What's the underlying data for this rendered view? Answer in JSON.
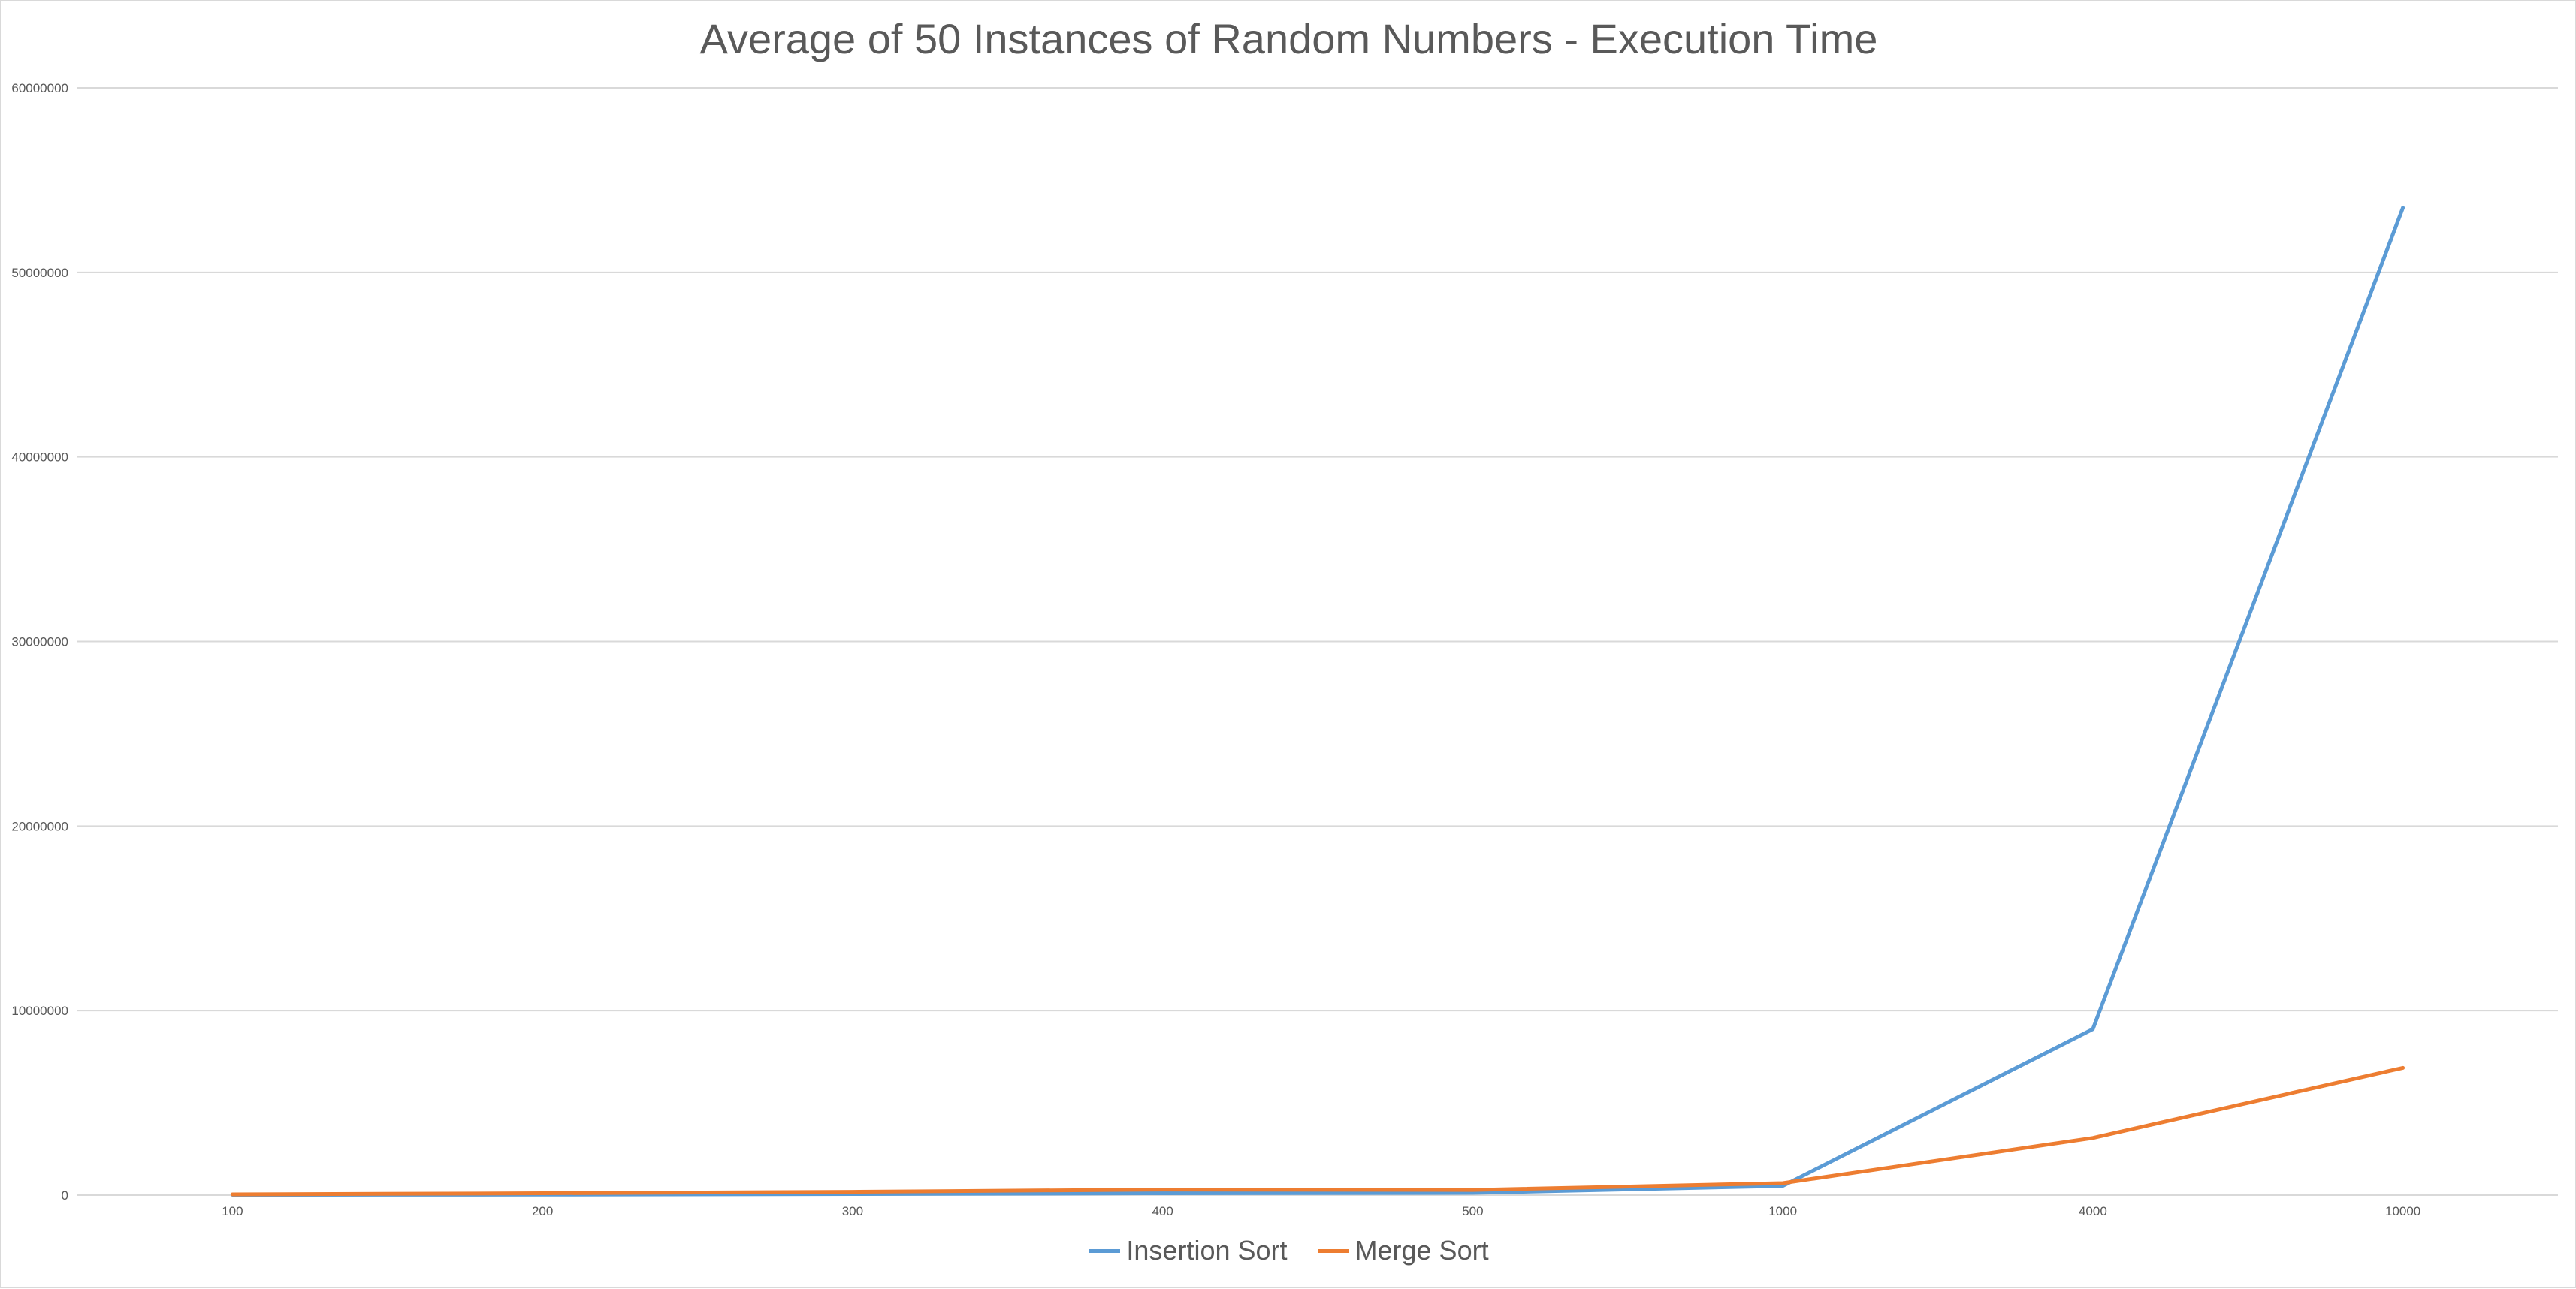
{
  "chart_data": {
    "type": "line",
    "title": "Average of 50 Instances of Random Numbers - Execution Time",
    "xlabel": "",
    "ylabel": "",
    "categories": [
      "100",
      "200",
      "300",
      "400",
      "500",
      "1000",
      "4000",
      "10000"
    ],
    "ylim": [
      0,
      60000000
    ],
    "yticks": [
      "0",
      "10000000",
      "20000000",
      "30000000",
      "40000000",
      "50000000",
      "60000000"
    ],
    "grid": true,
    "legend_position": "bottom",
    "series": [
      {
        "name": "Insertion Sort",
        "color": "#5b9bd5",
        "values": [
          20000,
          30000,
          60000,
          100000,
          120000,
          500000,
          9000000,
          53500000
        ]
      },
      {
        "name": "Merge Sort",
        "color": "#ed7d31",
        "values": [
          40000,
          100000,
          180000,
          300000,
          280000,
          650000,
          3100000,
          6900000
        ]
      }
    ]
  }
}
